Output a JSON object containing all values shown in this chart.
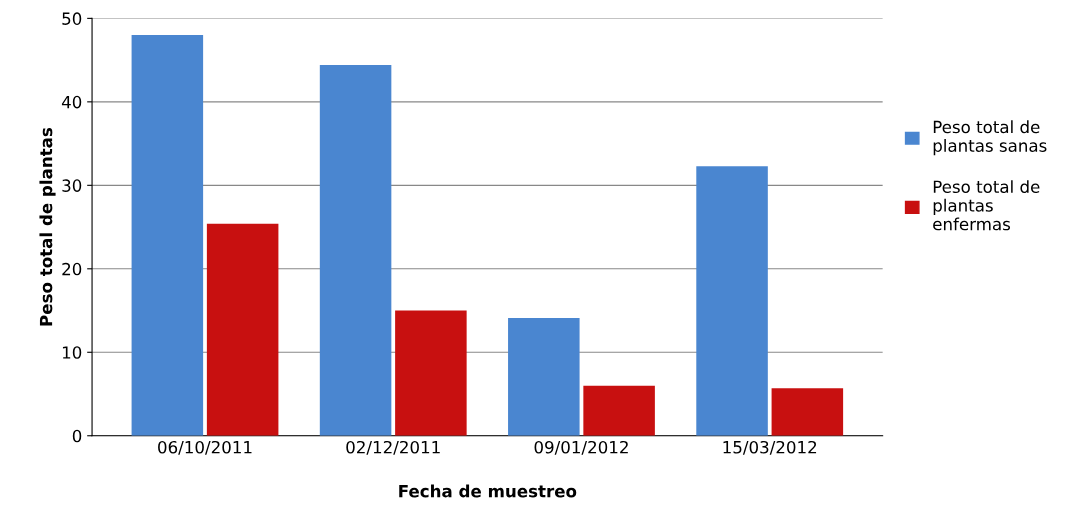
{
  "chart_data": {
    "type": "bar",
    "xlabel": "Fecha de muestreo",
    "ylabel": "Peso total de plantas",
    "categories": [
      "06/10/2011",
      "02/12/2011",
      "09/01/2012",
      "15/03/2012"
    ],
    "series": [
      {
        "name": "Peso total de plantas sanas",
        "color": "#4a86d0",
        "values": [
          48,
          44.4,
          14.1,
          32.3
        ]
      },
      {
        "name": "Peso total de plantas enfermas",
        "color": "#c81010",
        "values": [
          25.4,
          15,
          6,
          5.7
        ]
      }
    ],
    "ylim": [
      0,
      50
    ],
    "yticks": [
      0,
      10,
      20,
      30,
      40,
      50
    ],
    "grid": "y",
    "legend": "right"
  }
}
